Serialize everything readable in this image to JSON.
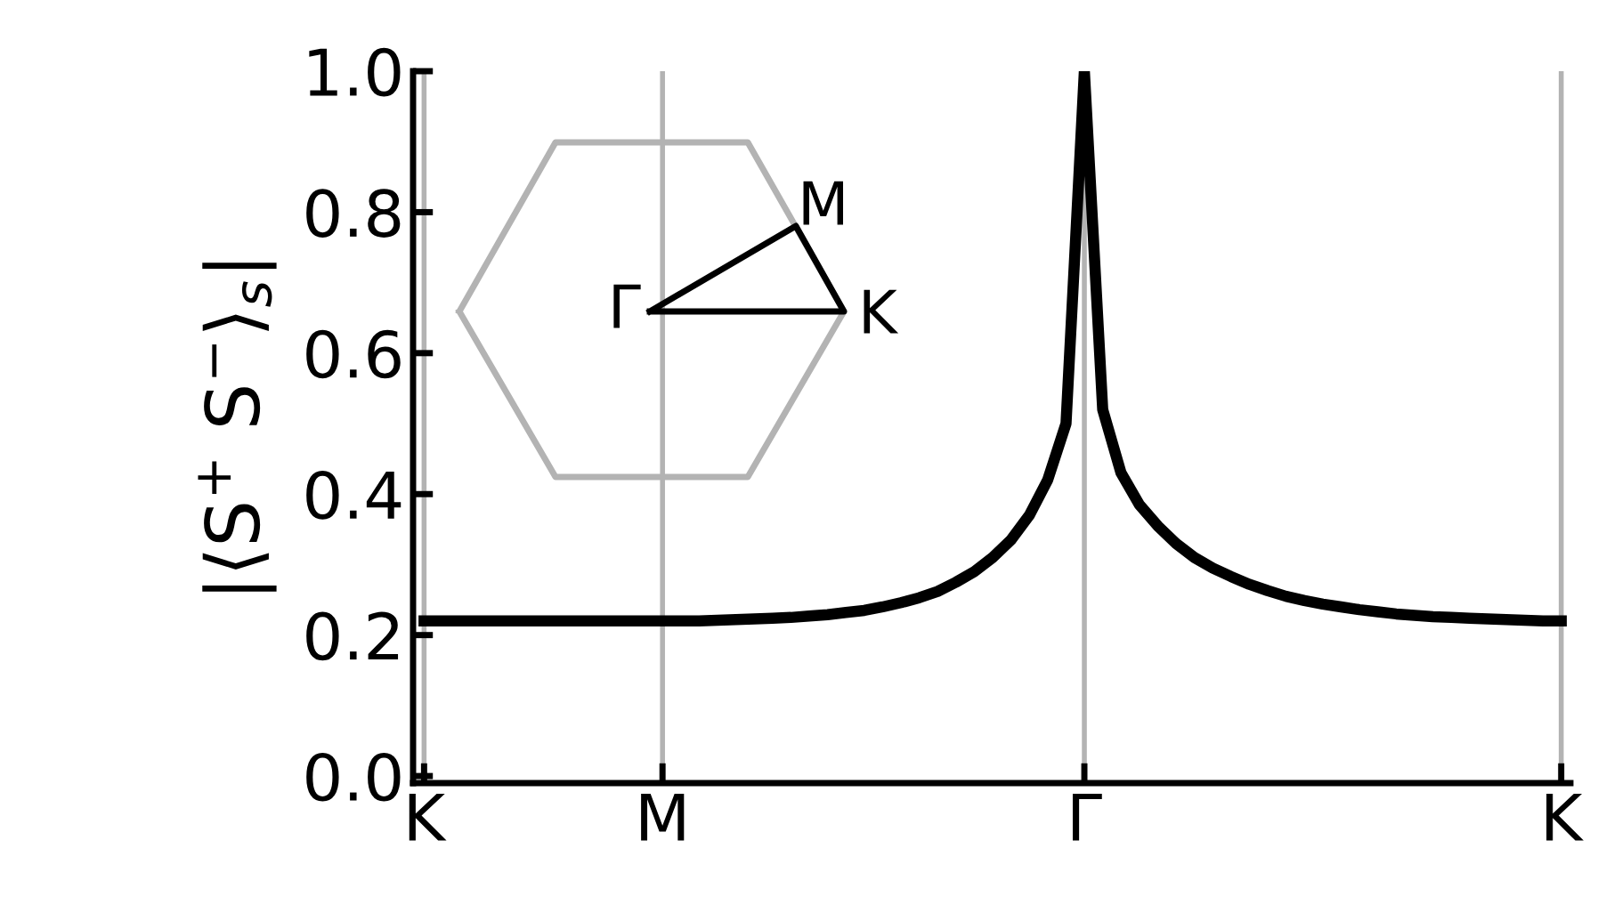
{
  "chart_data": {
    "type": "line",
    "ylabel": "|⟨S$^{+}$ S$^{−}$⟩$_{s}$|",
    "categories": [
      "K",
      null,
      null,
      null,
      null,
      null,
      null,
      null,
      null,
      null,
      null,
      null,
      null,
      "M",
      null,
      null,
      null,
      null,
      null,
      null,
      null,
      null,
      null,
      null,
      null,
      null,
      null,
      null,
      null,
      null,
      null,
      null,
      null,
      null,
      null,
      null,
      "Γ",
      null,
      null,
      null,
      null,
      null,
      null,
      null,
      null,
      null,
      null,
      null,
      null,
      null,
      null,
      null,
      null,
      null,
      null,
      null,
      null,
      null,
      null,
      null,
      null,
      null,
      "K"
    ],
    "series": [
      {
        "color": "#000000",
        "values": [
          0.22,
          0.22,
          0.22,
          0.22,
          0.22,
          0.22,
          0.22,
          0.22,
          0.22,
          0.22,
          0.22,
          0.22,
          0.22,
          0.22,
          0.22,
          0.22,
          0.221,
          0.222,
          0.223,
          0.224,
          0.225,
          0.227,
          0.229,
          0.232,
          0.235,
          0.24,
          0.246,
          0.253,
          0.262,
          0.275,
          0.29,
          0.31,
          0.335,
          0.37,
          0.42,
          0.5,
          1.0,
          0.52,
          0.43,
          0.385,
          0.355,
          0.33,
          0.31,
          0.295,
          0.283,
          0.272,
          0.263,
          0.255,
          0.249,
          0.244,
          0.24,
          0.236,
          0.233,
          0.23,
          0.228,
          0.226,
          0.225,
          0.224,
          0.223,
          0.222,
          0.221,
          0.22,
          0.22
        ]
      }
    ],
    "ylim": [
      -0.01,
      1.0
    ],
    "yticks": [
      {
        "value": 0,
        "label": "0.0"
      },
      {
        "value": 0.2,
        "label": "0.2"
      },
      {
        "value": 0.4,
        "label": "0.4"
      },
      {
        "value": 0.6,
        "label": "0.6"
      },
      {
        "value": 0.8,
        "label": "0.8"
      },
      {
        "value": 1.0,
        "label": "1.0"
      }
    ],
    "annotations": [
      "Γ",
      "M",
      "K"
    ],
    "grid": "x",
    "legend": false,
    "marker": "none",
    "line_style": "solid"
  }
}
